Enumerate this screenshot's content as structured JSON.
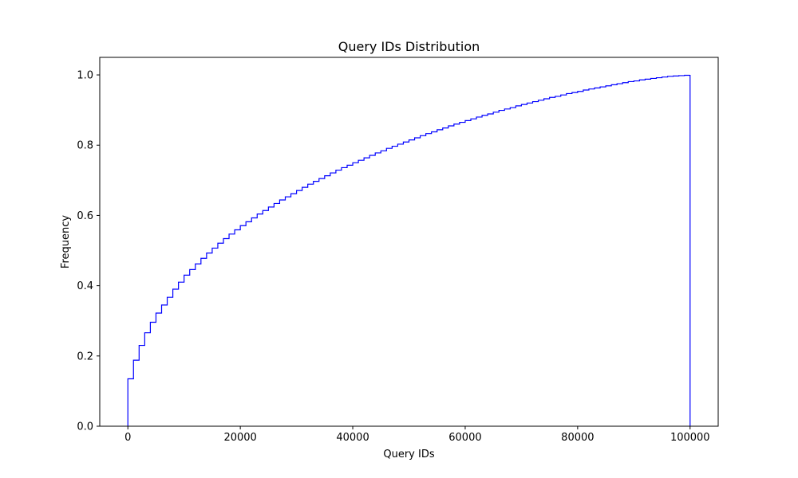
{
  "chart_data": {
    "type": "line",
    "subtype": "cumulative step histogram",
    "title": "Query IDs Distribution",
    "xlabel": "Query IDs",
    "ylabel": "Frequency",
    "xlim": [
      -5000,
      105000
    ],
    "ylim": [
      0,
      1.05
    ],
    "xticks": [
      0,
      20000,
      40000,
      60000,
      80000,
      100000
    ],
    "yticks": [
      0.0,
      0.2,
      0.4,
      0.6,
      0.8,
      1.0
    ],
    "xtick_labels": [
      "0",
      "20000",
      "40000",
      "60000",
      "80000",
      "100000"
    ],
    "ytick_labels": [
      "0.0",
      "0.2",
      "0.4",
      "0.6",
      "0.8",
      "1.0"
    ],
    "grid": false,
    "legend": "none",
    "line_color": "#0000ff",
    "series": [
      {
        "x": [
          0,
          1000,
          2000,
          3000,
          4000,
          5000,
          6000,
          7000,
          8000,
          9000,
          10000,
          11000,
          12000,
          13000,
          14000,
          15000,
          16000,
          17000,
          18000,
          19000,
          20000,
          21000,
          22000,
          23000,
          24000,
          25000,
          26000,
          27000,
          28000,
          29000,
          30000,
          31000,
          32000,
          33000,
          34000,
          35000,
          36000,
          37000,
          38000,
          39000,
          40000,
          41000,
          42000,
          43000,
          44000,
          45000,
          46000,
          47000,
          48000,
          49000,
          50000,
          51000,
          52000,
          53000,
          54000,
          55000,
          56000,
          57000,
          58000,
          59000,
          60000,
          61000,
          62000,
          63000,
          64000,
          65000,
          66000,
          67000,
          68000,
          69000,
          70000,
          71000,
          72000,
          73000,
          74000,
          75000,
          76000,
          77000,
          78000,
          79000,
          80000,
          81000,
          82000,
          83000,
          84000,
          85000,
          86000,
          87000,
          88000,
          89000,
          90000,
          91000,
          92000,
          93000,
          94000,
          95000,
          96000,
          97000,
          98000,
          99000,
          100000
        ],
        "y": [
          0.135,
          0.188,
          0.23,
          0.266,
          0.296,
          0.322,
          0.345,
          0.367,
          0.39,
          0.41,
          0.43,
          0.446,
          0.462,
          0.478,
          0.493,
          0.507,
          0.521,
          0.534,
          0.547,
          0.559,
          0.571,
          0.582,
          0.593,
          0.604,
          0.614,
          0.624,
          0.634,
          0.644,
          0.653,
          0.662,
          0.671,
          0.68,
          0.689,
          0.697,
          0.705,
          0.713,
          0.721,
          0.729,
          0.736,
          0.743,
          0.75,
          0.757,
          0.764,
          0.771,
          0.778,
          0.784,
          0.791,
          0.797,
          0.803,
          0.809,
          0.815,
          0.821,
          0.827,
          0.833,
          0.838,
          0.844,
          0.849,
          0.855,
          0.86,
          0.865,
          0.87,
          0.875,
          0.88,
          0.885,
          0.889,
          0.894,
          0.899,
          0.903,
          0.907,
          0.912,
          0.916,
          0.92,
          0.924,
          0.928,
          0.932,
          0.936,
          0.939,
          0.943,
          0.947,
          0.95,
          0.953,
          0.957,
          0.96,
          0.963,
          0.966,
          0.969,
          0.972,
          0.975,
          0.978,
          0.981,
          0.983,
          0.986,
          0.988,
          0.99,
          0.992,
          0.994,
          0.996,
          0.997,
          0.998,
          0.999,
          1.0
        ]
      }
    ]
  }
}
